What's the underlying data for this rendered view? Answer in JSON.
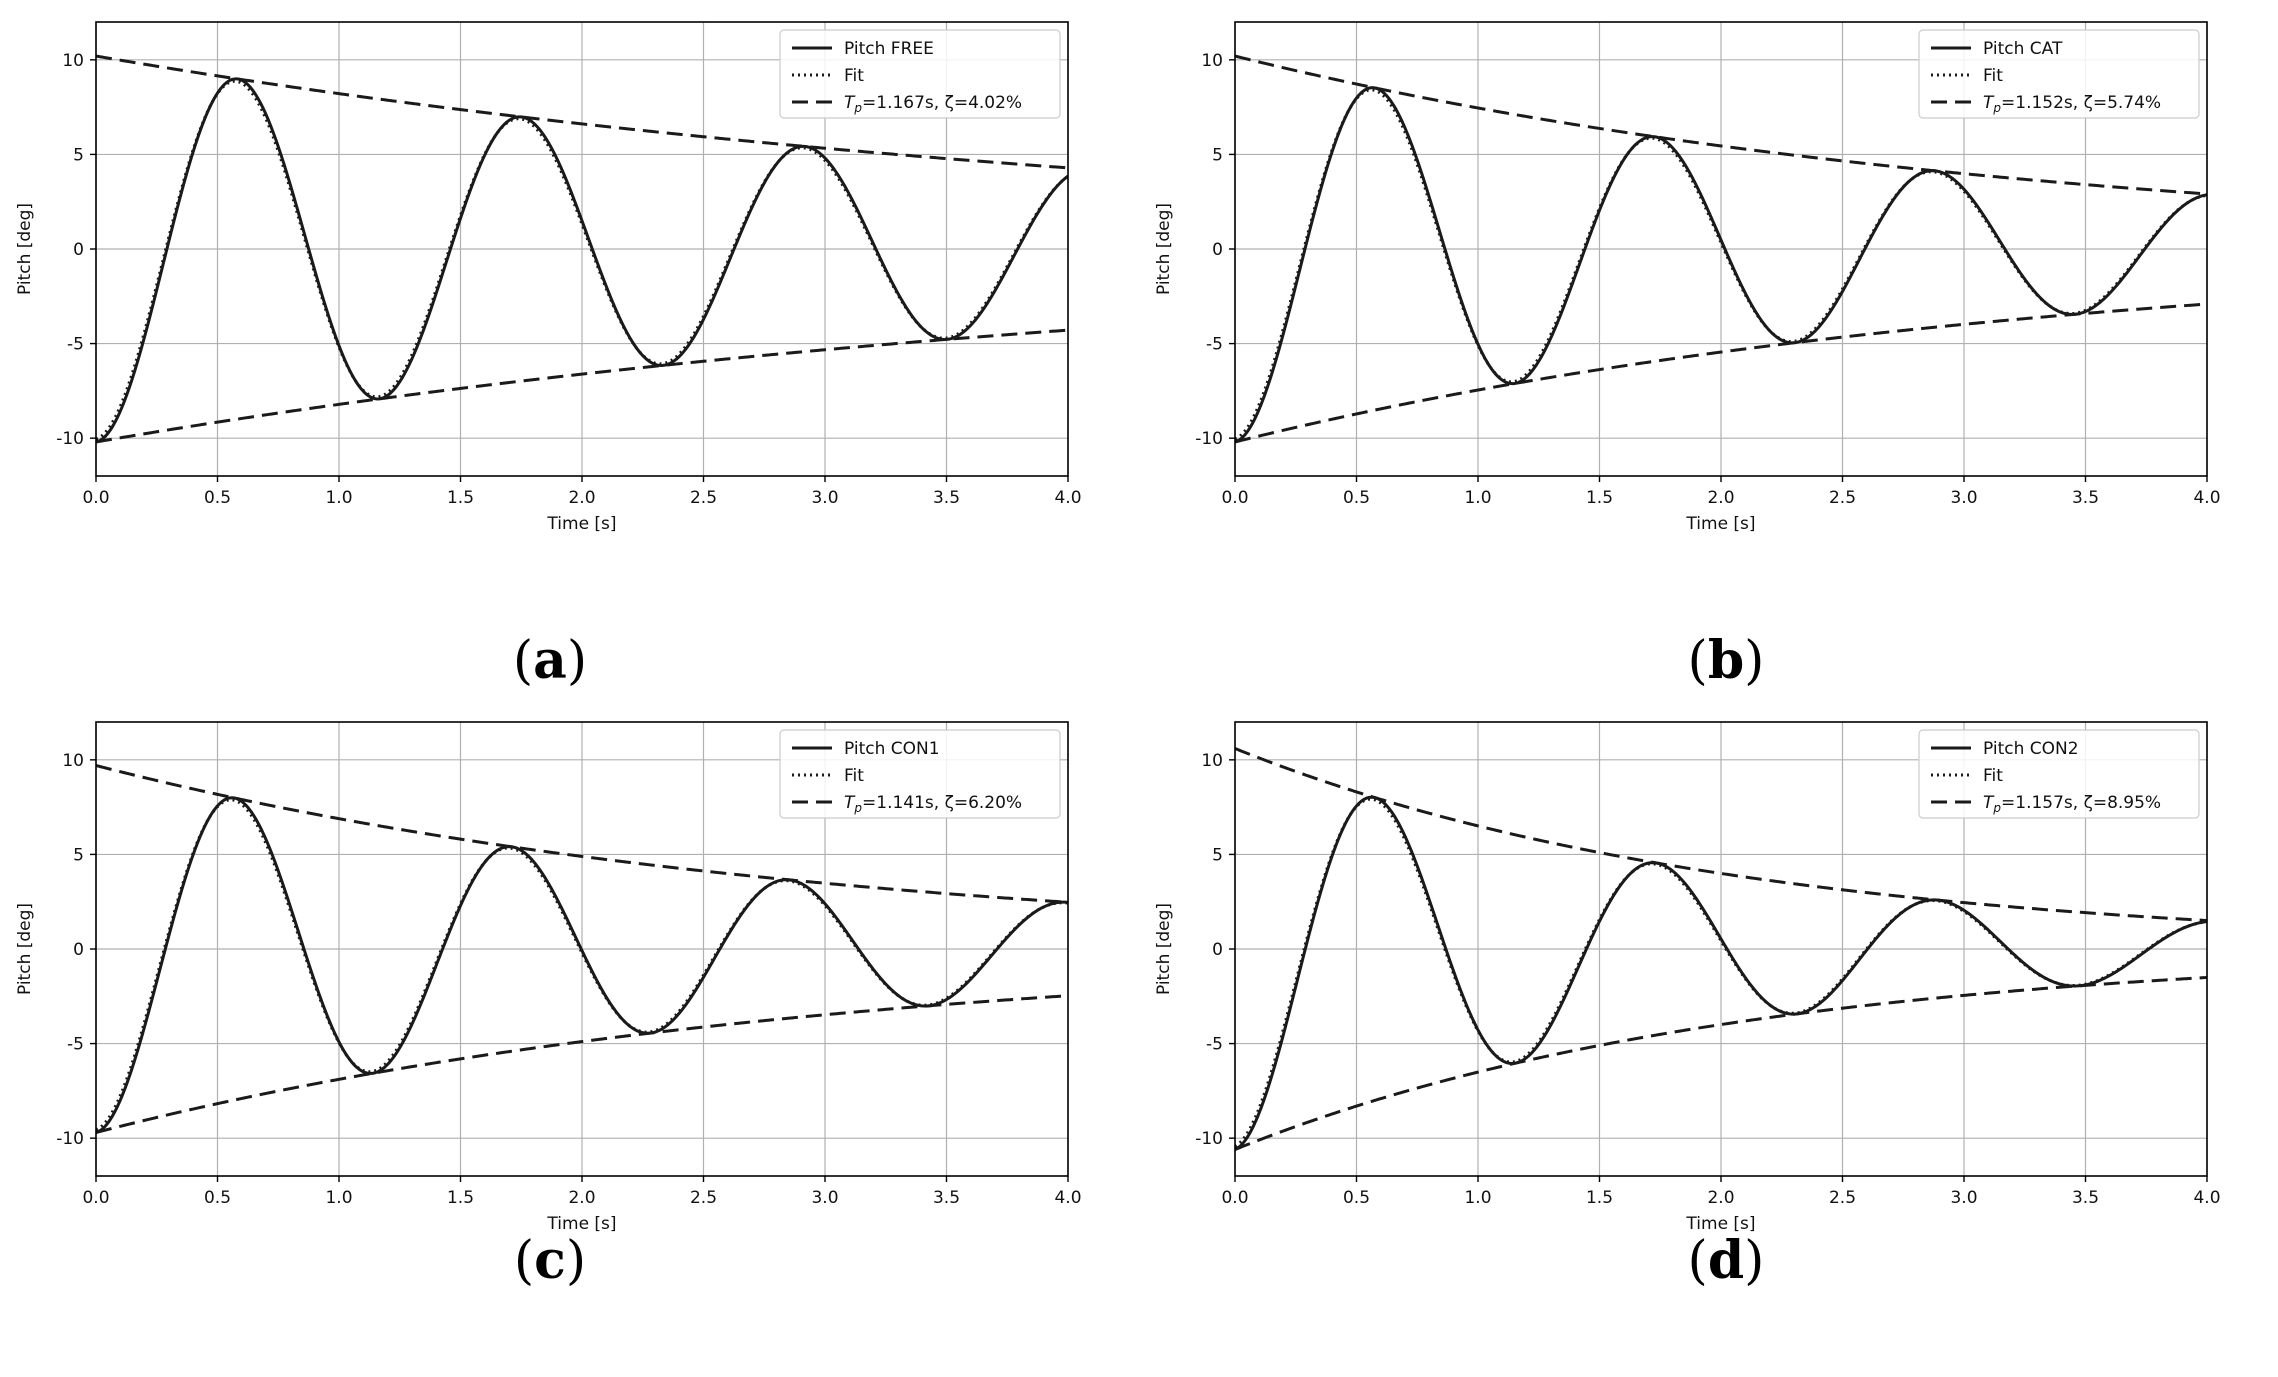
{
  "chart_data": [
    {
      "type": "line",
      "panel_label": "a",
      "xlabel": "Time [s]",
      "ylabel": "Pitch [deg]",
      "xlim": [
        0.0,
        4.0
      ],
      "ylim": [
        -12,
        12
      ],
      "xticks": [
        "0.0",
        "0.5",
        "1.0",
        "1.5",
        "2.0",
        "2.5",
        "3.0",
        "3.5",
        "4.0"
      ],
      "yticks": [
        "10",
        "5",
        "0",
        "-5",
        "-10"
      ],
      "grid": true,
      "legend_position": "top-right",
      "legend": [
        {
          "label": "Pitch FREE",
          "style": "solid"
        },
        {
          "label": "Fit",
          "style": "dotted"
        },
        {
          "label_prefix": "T",
          "label_sub": "p",
          "label_rest": "=1.167s, ζ=4.02%",
          "style": "dashed"
        }
      ],
      "model": {
        "period_s": 1.167,
        "damping_pct": 4.02,
        "amplitude_deg": 10.2
      }
    },
    {
      "type": "line",
      "panel_label": "b",
      "xlabel": "Time [s]",
      "ylabel": "Pitch [deg]",
      "xlim": [
        0.0,
        4.0
      ],
      "ylim": [
        -12,
        12
      ],
      "xticks": [
        "0.0",
        "0.5",
        "1.0",
        "1.5",
        "2.0",
        "2.5",
        "3.0",
        "3.5",
        "4.0"
      ],
      "yticks": [
        "10",
        "5",
        "0",
        "-5",
        "-10"
      ],
      "grid": true,
      "legend_position": "top-right",
      "legend": [
        {
          "label": "Pitch CAT",
          "style": "solid"
        },
        {
          "label": "Fit",
          "style": "dotted"
        },
        {
          "label_prefix": "T",
          "label_sub": "p",
          "label_rest": "=1.152s, ζ=5.74%",
          "style": "dashed"
        }
      ],
      "model": {
        "period_s": 1.152,
        "damping_pct": 5.74,
        "amplitude_deg": 10.2
      }
    },
    {
      "type": "line",
      "panel_label": "c",
      "xlabel": "Time [s]",
      "ylabel": "Pitch [deg]",
      "xlim": [
        0.0,
        4.0
      ],
      "ylim": [
        -12,
        12
      ],
      "xticks": [
        "0.0",
        "0.5",
        "1.0",
        "1.5",
        "2.0",
        "2.5",
        "3.0",
        "3.5",
        "4.0"
      ],
      "yticks": [
        "10",
        "5",
        "0",
        "-5",
        "-10"
      ],
      "grid": true,
      "legend_position": "top-right",
      "legend": [
        {
          "label": "Pitch CON1",
          "style": "solid"
        },
        {
          "label": "Fit",
          "style": "dotted"
        },
        {
          "label_prefix": "T",
          "label_sub": "p",
          "label_rest": "=1.141s, ζ=6.20%",
          "style": "dashed"
        }
      ],
      "model": {
        "period_s": 1.141,
        "damping_pct": 6.2,
        "amplitude_deg": 9.7
      }
    },
    {
      "type": "line",
      "panel_label": "d",
      "xlabel": "Time [s]",
      "ylabel": "Pitch [deg]",
      "xlim": [
        0.0,
        4.0
      ],
      "ylim": [
        -12,
        12
      ],
      "xticks": [
        "0.0",
        "0.5",
        "1.0",
        "1.5",
        "2.0",
        "2.5",
        "3.0",
        "3.5",
        "4.0"
      ],
      "yticks": [
        "10",
        "5",
        "0",
        "-5",
        "-10"
      ],
      "grid": true,
      "legend_position": "top-right",
      "legend": [
        {
          "label": "Pitch CON2",
          "style": "solid"
        },
        {
          "label": "Fit",
          "style": "dotted"
        },
        {
          "label_prefix": "T",
          "label_sub": "p",
          "label_rest": "=1.157s, ζ=8.95%",
          "style": "dashed"
        }
      ],
      "model": {
        "period_s": 1.157,
        "damping_pct": 8.95,
        "amplitude_deg": 10.6
      }
    }
  ],
  "captions": [
    {
      "open": "(",
      "letter": "a",
      "close": ")"
    },
    {
      "open": "(",
      "letter": "b",
      "close": ")"
    },
    {
      "open": "(",
      "letter": "c",
      "close": ")"
    },
    {
      "open": "(",
      "letter": "d",
      "close": ")"
    }
  ]
}
